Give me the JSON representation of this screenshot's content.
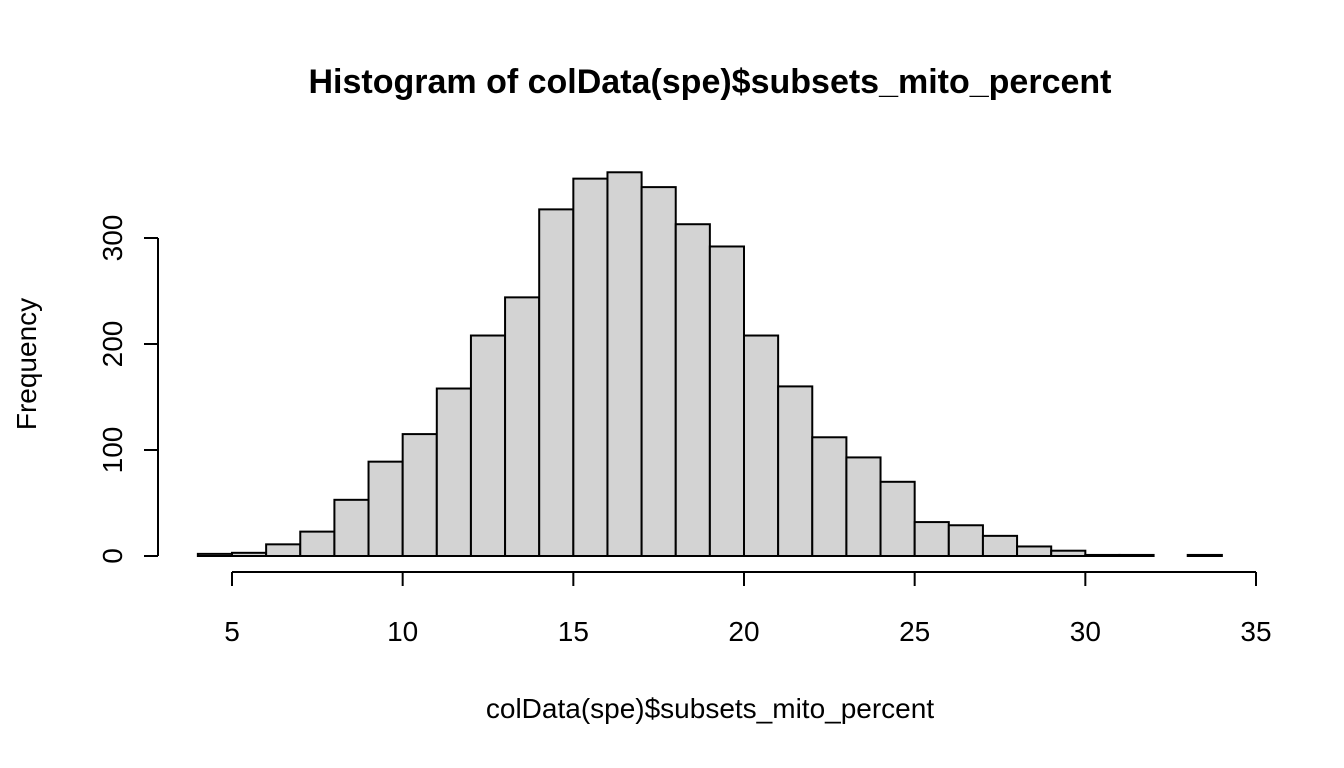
{
  "chart_data": {
    "type": "bar",
    "title": "Histogram of colData(spe)$subsets_mito_percent",
    "xlabel": "colData(spe)$subsets_mito_percent",
    "ylabel": "Frequency",
    "bin_width": 1,
    "bin_edges": [
      4,
      5,
      6,
      7,
      8,
      9,
      10,
      11,
      12,
      13,
      14,
      15,
      16,
      17,
      18,
      19,
      20,
      21,
      22,
      23,
      24,
      25,
      26,
      27,
      28,
      29,
      30,
      31,
      32,
      33,
      34
    ],
    "values": [
      2,
      3,
      11,
      23,
      53,
      89,
      115,
      158,
      208,
      244,
      327,
      356,
      362,
      348,
      313,
      292,
      208,
      160,
      112,
      93,
      70,
      32,
      29,
      19,
      9,
      5,
      1,
      1,
      0,
      1
    ],
    "xlim": [
      4,
      34
    ],
    "ylim": [
      0,
      362
    ],
    "x_ticks": [
      5,
      10,
      15,
      20,
      25,
      30,
      35
    ],
    "y_ticks": [
      0,
      100,
      200,
      300
    ],
    "bar_fill": "#d3d3d3",
    "grid": false,
    "legend": "none"
  }
}
